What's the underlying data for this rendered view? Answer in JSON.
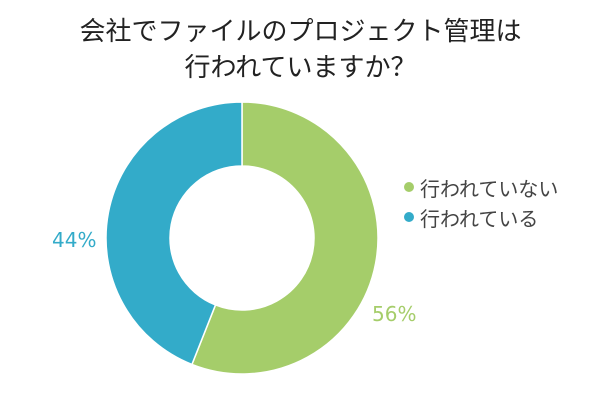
{
  "chart_data": {
    "type": "pie",
    "title": "会社でファイルのプロジェクト管理は行われていますか？",
    "title_lines": [
      "会社でファイルのプロジェクト管理は",
      "行われていますか？"
    ],
    "labels": [
      "行われていない",
      "行われている"
    ],
    "values": [
      56,
      44
    ],
    "value_labels": [
      "56%",
      "44%"
    ],
    "colors": [
      "#a5cd6a",
      "#33abc9"
    ],
    "donut": true,
    "start": "top, clockwise",
    "legend_placement": "right"
  }
}
